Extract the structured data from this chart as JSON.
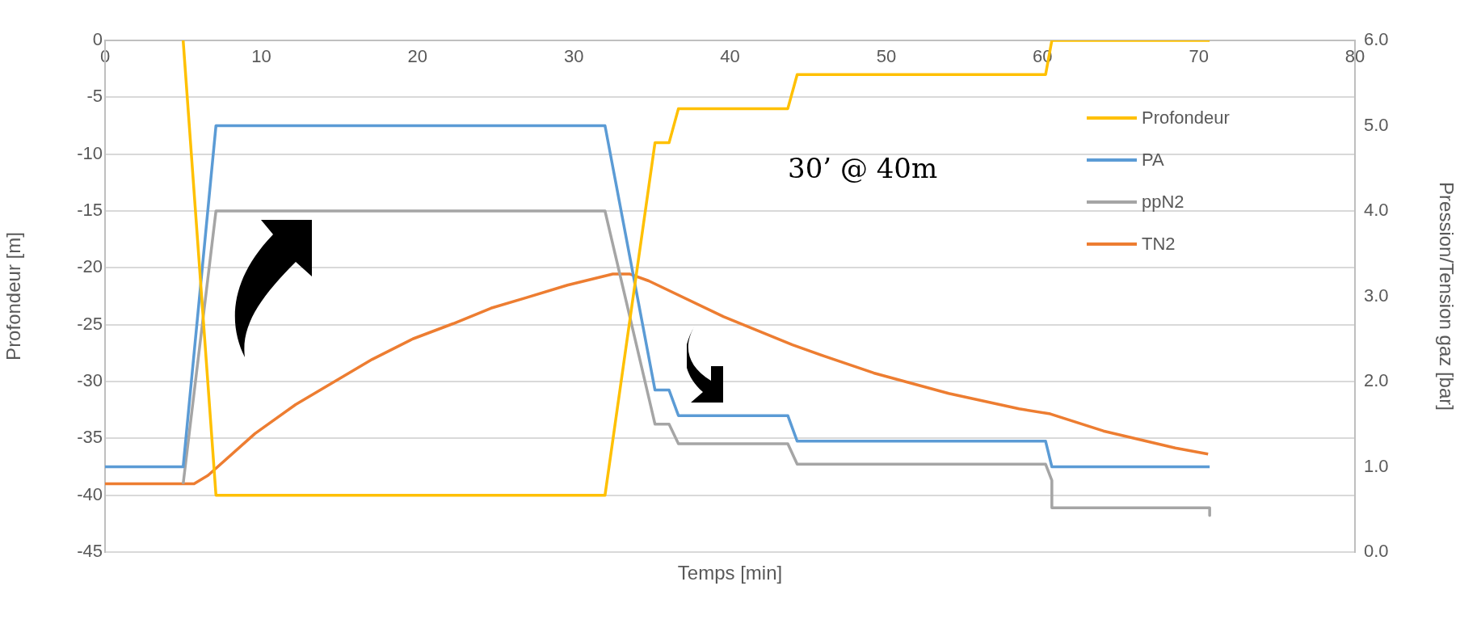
{
  "chart_data": {
    "type": "line",
    "xlabel": "Temps [min]",
    "ylabel": "Profondeur [m]",
    "y2label": "Pression/Tension gaz [bar]",
    "xlim": [
      0,
      80
    ],
    "xticks": [
      0,
      10,
      20,
      30,
      40,
      50,
      60,
      70,
      80
    ],
    "ylim": [
      -45,
      0
    ],
    "yticks": [
      -45,
      -40,
      -35,
      -30,
      -25,
      -20,
      -15,
      -10,
      -5,
      0
    ],
    "y2lim": [
      0,
      6
    ],
    "y2ticks": [
      {
        "value": 0,
        "label": "0.0"
      },
      {
        "value": 1,
        "label": "1.0"
      },
      {
        "value": 2,
        "label": "2.0"
      },
      {
        "value": 3,
        "label": "3.0"
      },
      {
        "value": 4,
        "label": "4.0"
      },
      {
        "value": 5,
        "label": "5.0"
      },
      {
        "value": 6,
        "label": "6.0"
      }
    ],
    "grid": "y",
    "legend": "top right",
    "marker": "none",
    "line_style": "solid",
    "annotations": [
      "30’ @ 40m"
    ],
    "series": [
      {
        "name": "Profondeur",
        "color": "#ffc000",
        "x": [
          5,
          7.1,
          32,
          35.2,
          36.1,
          36.7,
          43.7,
          44.3,
          60.2,
          60.6,
          70.7
        ],
        "values": [
          0,
          -40,
          -40,
          -9,
          -9,
          -6,
          -6,
          -3,
          -3,
          0,
          0
        ]
      },
      {
        "name": "PA",
        "color": "#5b9bd5",
        "axis": "y2",
        "x": [
          0,
          5,
          7.1,
          32,
          35.2,
          36.1,
          36.7,
          43.7,
          44.3,
          60.2,
          60.6,
          70.7
        ],
        "values": [
          1,
          1,
          5,
          5,
          1.9,
          1.9,
          1.6,
          1.6,
          1.3,
          1.3,
          1,
          1
        ]
      },
      {
        "name": "ppN2",
        "color": "#a5a5a5",
        "axis": "y2",
        "x": [
          5,
          7.1,
          32,
          35.2,
          36.1,
          36.7,
          43.7,
          44.3,
          60.2,
          60.6,
          60.6,
          70.7,
          70.7
        ],
        "values": [
          0.8,
          4,
          4,
          1.5,
          1.5,
          1.27,
          1.27,
          1.03,
          1.03,
          0.84,
          0.52,
          0.52,
          0.43
        ]
      },
      {
        "name": "TN2",
        "color": "#ed7d31",
        "axis": "y2",
        "x": [
          0,
          5.7,
          6.6,
          9.6,
          12.2,
          17.1,
          19.7,
          22.3,
          24.7,
          26.9,
          29.6,
          32.5,
          33.6,
          34.8,
          39.6,
          44,
          46,
          49.2,
          54,
          58.5,
          60.5,
          63.9,
          68.5,
          70.6
        ],
        "values": [
          0.8,
          0.8,
          0.9,
          1.39,
          1.73,
          2.26,
          2.5,
          2.68,
          2.86,
          2.98,
          3.13,
          3.26,
          3.26,
          3.18,
          2.76,
          2.43,
          2.3,
          2.1,
          1.86,
          1.68,
          1.62,
          1.42,
          1.22,
          1.15
        ]
      }
    ]
  }
}
